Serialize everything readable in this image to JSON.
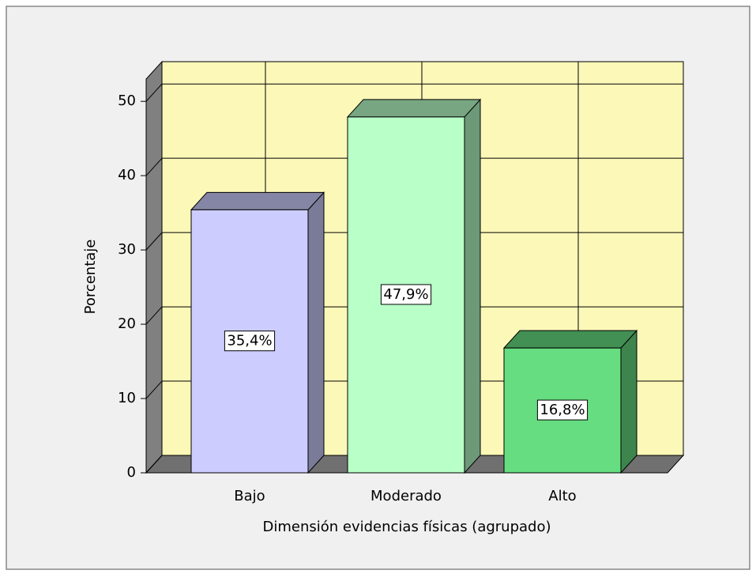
{
  "chart_data": {
    "type": "bar3d",
    "x_label": "Dimensión evidencias físicas (agrupado)",
    "y_label": "Porcentaje",
    "categories": [
      "Bajo",
      "Moderado",
      "Alto"
    ],
    "values": [
      35.4,
      47.9,
      16.8
    ],
    "value_labels": [
      "35,4%",
      "47,9%",
      "16,8%"
    ],
    "colors": [
      "#ccccff",
      "#b8ffc8",
      "#66dd80"
    ],
    "ylim": [
      0,
      53
    ],
    "yticks": [
      0,
      10,
      20,
      30,
      40,
      50
    ],
    "grid": true
  }
}
